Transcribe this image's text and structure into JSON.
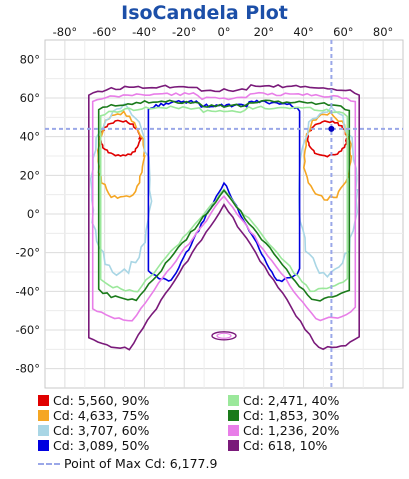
{
  "chart_data": {
    "type": "isocandela-contour",
    "title": "IsoCandela Plot",
    "xlim": [
      -90,
      90
    ],
    "ylim": [
      -90,
      90
    ],
    "x_ticks": [
      "-80°",
      "-60°",
      "-40°",
      "-20°",
      "0°",
      "20°",
      "40°",
      "60°",
      "80°"
    ],
    "y_ticks": [
      "80°",
      "60°",
      "40°",
      "20°",
      "0°",
      "-20°",
      "-40°",
      "-60°",
      "-80°"
    ],
    "grid": true,
    "legend_position": "bottom",
    "max_point": {
      "x": 54,
      "y": 44,
      "label": "Point of Max Cd: 6,177.9"
    },
    "series": [
      {
        "name": "Cd: 5,560, 90%",
        "color": "#e00000",
        "half_width": 22,
        "y_min": 30,
        "y_max": 48,
        "hole": 0,
        "bottom_y": 30
      },
      {
        "name": "Cd: 4,633, 75%",
        "color": "#f5a623",
        "half_width": 26,
        "y_min": 8,
        "y_max": 52,
        "hole": 0,
        "bottom_y": 8
      },
      {
        "name": "Cd: 3,707, 60%",
        "color": "#a9d6e5",
        "half_width": 33,
        "y_min": -30,
        "y_max": 55,
        "hole": 0,
        "bottom_y": -30
      },
      {
        "name": "Cd: 3,089, 50%",
        "color": "#0000e0",
        "half_width": 38,
        "y_min": -35,
        "y_max": 58,
        "hole": 2,
        "bottom_y": -35
      },
      {
        "name": "Cd: 2,471, 40%",
        "color": "#9be89b",
        "half_width": 62,
        "y_min": -40,
        "y_max": 55,
        "hole": 1,
        "bottom_y": -40
      },
      {
        "name": "Cd: 1,853, 30%",
        "color": "#1a7a1a",
        "half_width": 63,
        "y_min": -45,
        "y_max": 58,
        "hole": 1,
        "bottom_y": -45
      },
      {
        "name": "Cd: 1,236, 20%",
        "color": "#e87ee8",
        "half_width": 66,
        "y_min": -55,
        "y_max": 62,
        "hole": 1,
        "bottom_y": -55
      },
      {
        "name": "Cd: 618, 10%",
        "color": "#7a1a7a",
        "half_width": 68,
        "y_min": -70,
        "y_max": 66,
        "hole": 1,
        "bottom_y": -70
      }
    ]
  }
}
